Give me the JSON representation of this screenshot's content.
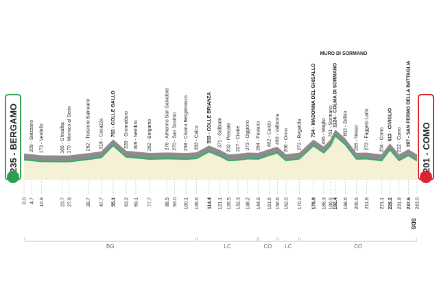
{
  "chart_data": {
    "type": "area",
    "start": "235 - BERGAMO",
    "finish": "201 - COMO",
    "annotation": "MURO DI SORMANO",
    "logo": "SDS",
    "x": [
      0,
      4.7,
      10.9,
      23.7,
      27.9,
      39.7,
      47.7,
      55.1,
      63.2,
      69.1,
      77.7,
      88.5,
      93.0,
      100.1,
      106.6,
      114.4,
      121.1,
      126.5,
      132.3,
      138.2,
      144.9,
      151.6,
      156.6,
      162.0,
      170.2,
      178.9,
      185.3,
      189.5,
      192.4,
      198.6,
      205.5,
      211.8,
      221.1,
      226.2,
      231.9,
      237.6,
      243.0
    ],
    "values": [
      235,
      209,
      173,
      165,
      170,
      252,
      318,
      763,
      339,
      309,
      262,
      276,
      270,
      258,
      283,
      533,
      371,
      203,
      227,
      273,
      264,
      402,
      490,
      206,
      272,
      754,
      495,
      761,
      1124,
      802,
      265,
      273,
      204,
      613,
      212,
      397,
      201
    ],
    "waypoints": [
      null,
      "209 - Stezzano",
      "173 - Verdello",
      "165 - Ghisalba",
      "170 - Mornico al Serio",
      "252 - Trescore Balneario",
      "318 - Casazza",
      "763 - COLLE GALLO",
      "339 - Gromalduro",
      "309 - Nembro",
      "262 - Bergamo",
      "276 - Almenno San Salvatore",
      "270 - San Sosimo",
      "258 - Cisano Bergamasco",
      "283 - Calco",
      "533 - COLLE BRIANZA",
      "371 - Galbiate",
      "203 - Pescate",
      "227 - Civate",
      "273 - Oggiono",
      "264 - Pusiano",
      "402 - Canzo",
      "490 - Valbrona",
      "206 - Onno",
      "272 - Regatola",
      "754 - MADONNA DEL GHISALLO",
      "495 - Maglio",
      "761 - Sormano",
      "1124 - COLMA DI SORMANO",
      "802 - Zelbio",
      "265 - Nesso",
      "273 - Faggeto Lario",
      "204 - Como",
      "613 - CIVIGLIO",
      "212 - Como",
      "397 - SAN FERMO DELLA BATTAGLIA",
      null
    ],
    "xlim": [
      0,
      243.0
    ],
    "ylim": [
      -500,
      1200
    ],
    "xticks": [
      {
        "value": 0,
        "label": "0.0"
      },
      4.7,
      10.9,
      23.7,
      27.9,
      39.7,
      47.7,
      55.1,
      63.2,
      69.1,
      77.7,
      88.5,
      {
        "value": 93,
        "label": "93.0"
      },
      100.1,
      106.6,
      114.4,
      121.1,
      126.5,
      132.3,
      138.2,
      144.9,
      151.6,
      156.6,
      {
        "value": 162,
        "label": "162.0"
      },
      170.2,
      178.9,
      185.3,
      189.5,
      192.4,
      198.6,
      205.5,
      211.8,
      221.1,
      226.2,
      231.9,
      237.6,
      {
        "value": 243,
        "label": "243.0"
      }
    ],
    "regions": [
      {
        "label": "BG",
        "from": 0,
        "to": 106.6
      },
      {
        "label": "LC",
        "from": 106.6,
        "to": 144.9
      },
      {
        "label": "CO",
        "from": 144.9,
        "to": 156.6
      },
      {
        "label": "LC",
        "from": 156.6,
        "to": 170.2
      },
      {
        "label": "CO",
        "from": 170.2,
        "to": 243.0
      }
    ],
    "colors": {
      "line": "#2fae6a",
      "top": "#8c8c8c",
      "fill": "#f4f1d6",
      "start": "#2e9e4f",
      "finish": "#d6262b"
    }
  }
}
